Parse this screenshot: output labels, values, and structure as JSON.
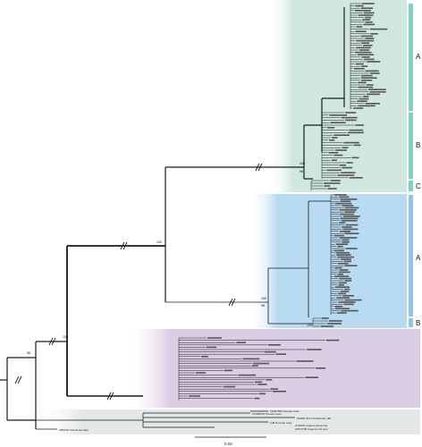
{
  "colors": {
    "panel_green": "#cfe7dc",
    "panel_blue": "#b9dbf2",
    "panel_purple": "#dccce4",
    "panel_grey": "#e4e7e7",
    "bar_green": "#7fd0c9",
    "bar_blue": "#8fc7ec",
    "branch": "#1a1a1a"
  },
  "tree": {
    "clades": {
      "green": [
        "A",
        "B",
        "C"
      ],
      "blue": [
        "A",
        "B"
      ]
    },
    "support_values": {
      "root_basal": "100",
      "node_purple": "100",
      "node_green_outer": "100",
      "node_green_inner": "98",
      "node_blue": "100",
      "node_blue_inner": "98",
      "node_blue_b": "100",
      "node_left": "98"
    },
    "scale_bar_label": "0.04",
    "outgroup_label": "XB6446 Ostreid amoeba",
    "labels": {
      "grey_1": "FR837505 Pseudo-fnote",
      "grey_2": "KX698740 Pseudo-fnote",
      "grey_3": "MH491 621 N boliviarum 3ffl",
      "grey_4": "KJ8 Nuvertin ostei",
      "grey_5": "AY2003 Uxaprus pluvecrae",
      "grey_6": "KP5 3700 Uxaprus ind spur"
    }
  }
}
